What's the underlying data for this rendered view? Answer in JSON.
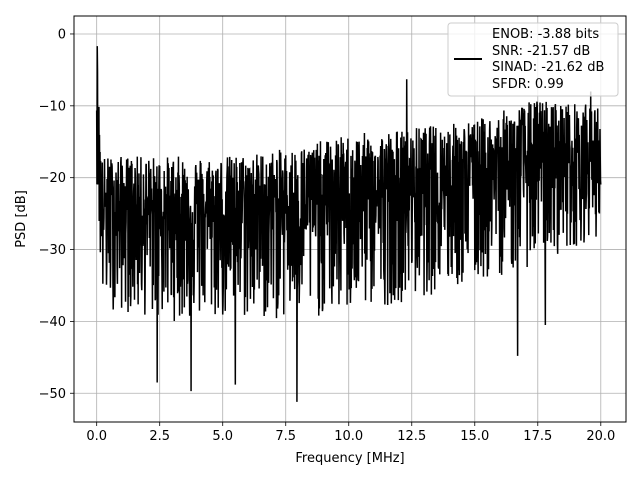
{
  "chart_data": {
    "type": "line",
    "title": "",
    "xlabel": "Frequency [MHz]",
    "ylabel": "PSD [dB]",
    "xlim": [
      -0.9,
      21.0
    ],
    "ylim": [
      -54,
      2.5
    ],
    "xticks": [
      0.0,
      2.5,
      5.0,
      7.5,
      10.0,
      12.5,
      15.0,
      17.5,
      20.0
    ],
    "xtick_labels": [
      "0.0",
      "2.5",
      "5.0",
      "7.5",
      "10.0",
      "12.5",
      "15.0",
      "17.5",
      "20.0"
    ],
    "yticks": [
      0,
      -10,
      -20,
      -30,
      -40,
      -50
    ],
    "ytick_labels": [
      "0",
      "−10",
      "−20",
      "−30",
      "−40",
      "−50"
    ],
    "grid": true,
    "legend_placement": "upper-right",
    "legend_lines": [
      "ENOB: -3.88 bits",
      "SNR: -21.57 dB",
      "SINAD: -21.62 dB",
      "SFDR: 0.99"
    ],
    "series": [
      {
        "color": "#000000",
        "x_range": [
          0.0,
          20.0
        ],
        "trend": [
          {
            "x": 0.0,
            "hi": -2,
            "mid": -9,
            "lo": -20
          },
          {
            "x": 0.2,
            "hi": -17,
            "mid": -24,
            "lo": -38
          },
          {
            "x": 2.5,
            "hi": -17,
            "mid": -25,
            "lo": -40
          },
          {
            "x": 5.0,
            "hi": -17,
            "mid": -25,
            "lo": -40
          },
          {
            "x": 7.5,
            "hi": -16,
            "mid": -24,
            "lo": -40
          },
          {
            "x": 10.0,
            "hi": -14,
            "mid": -23,
            "lo": -39
          },
          {
            "x": 12.5,
            "hi": -13,
            "mid": -22,
            "lo": -37
          },
          {
            "x": 15.0,
            "hi": -12,
            "mid": -20,
            "lo": -35
          },
          {
            "x": 17.5,
            "hi": -9,
            "mid": -18,
            "lo": -32
          },
          {
            "x": 20.0,
            "hi": -10,
            "mid": -17,
            "lo": -28
          }
        ],
        "notable_points": [
          {
            "x": 0.02,
            "y": -1.7
          },
          {
            "x": 2.4,
            "y": -48.5
          },
          {
            "x": 3.75,
            "y": -49.7
          },
          {
            "x": 5.5,
            "y": -48.8
          },
          {
            "x": 7.95,
            "y": -51.2
          },
          {
            "x": 12.3,
            "y": -6.3
          },
          {
            "x": 16.7,
            "y": -44.8
          },
          {
            "x": 17.8,
            "y": -40.5
          },
          {
            "x": 19.6,
            "y": -8.0
          }
        ]
      }
    ]
  }
}
